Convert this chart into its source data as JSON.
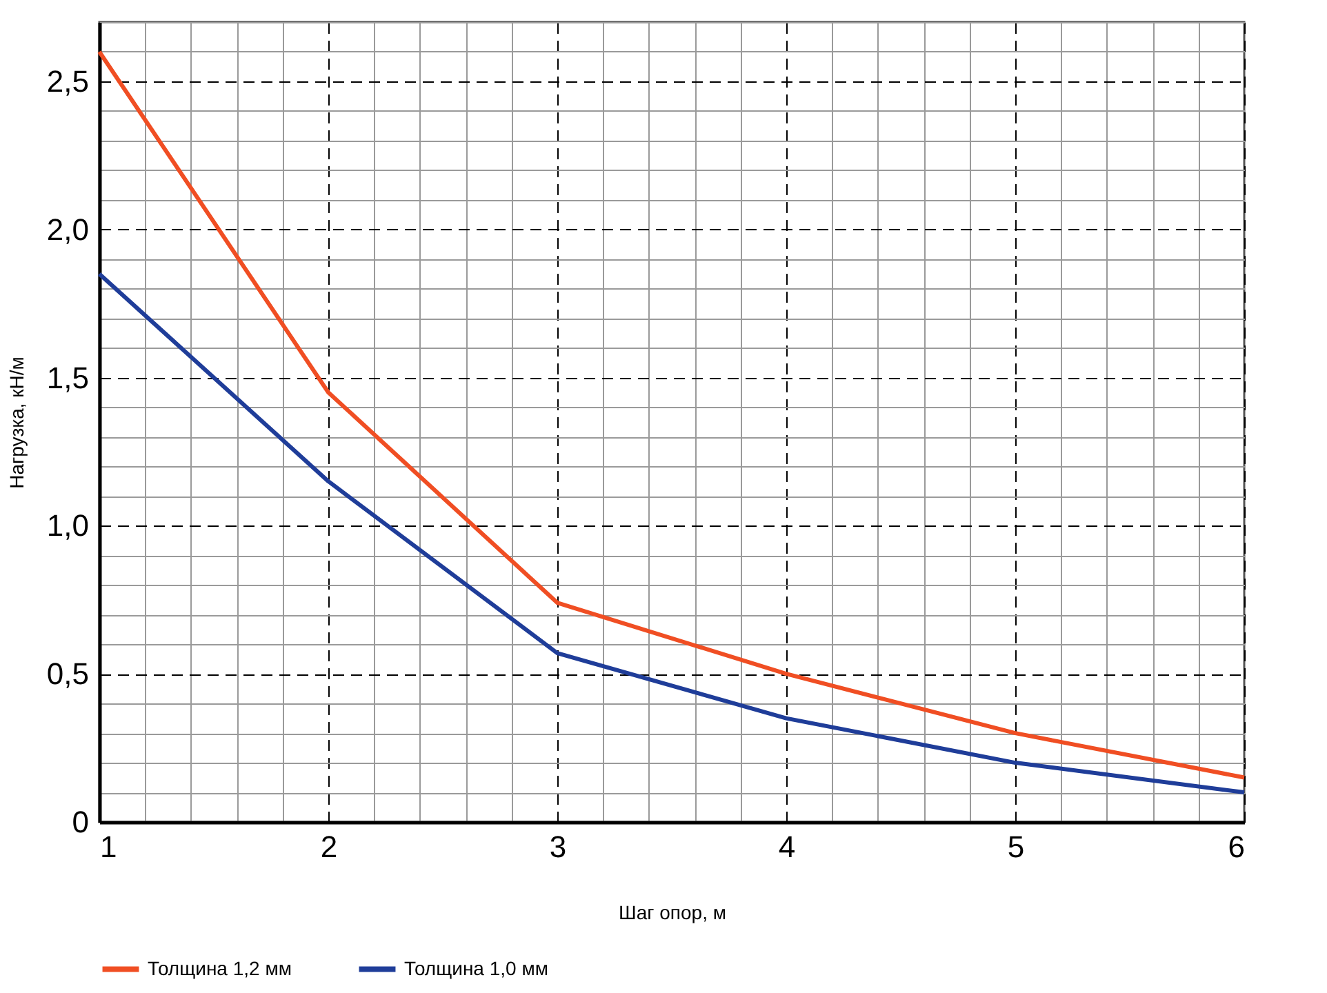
{
  "chart_data": {
    "type": "line",
    "xlabel": "Шаг опор, м",
    "ylabel": "Нагрузка, кН/м",
    "x": [
      1,
      2,
      3,
      4,
      5,
      6
    ],
    "series": [
      {
        "name": "Толщина 1,2 мм",
        "color": "#f04e23",
        "values": [
          2.6,
          1.45,
          0.74,
          0.5,
          0.3,
          0.15
        ]
      },
      {
        "name": "Толщина 1,0 мм",
        "color": "#1f3d99",
        "values": [
          1.85,
          1.15,
          0.57,
          0.35,
          0.2,
          0.1
        ]
      }
    ],
    "xlim": [
      1,
      6
    ],
    "xticks": [
      1,
      2,
      3,
      4,
      5,
      6
    ],
    "ylim": [
      0,
      2.7
    ],
    "yticks": [
      0,
      {
        "value": 0.5,
        "label": "0,5"
      },
      {
        "value": 1.0,
        "label": "1,0"
      },
      {
        "value": 1.5,
        "label": "1,5"
      },
      {
        "value": 2.0,
        "label": "2,0"
      },
      {
        "value": 2.5,
        "label": "2,5"
      }
    ],
    "grid": true,
    "legend": "bottom",
    "marker": "none",
    "line_style": "solid"
  }
}
